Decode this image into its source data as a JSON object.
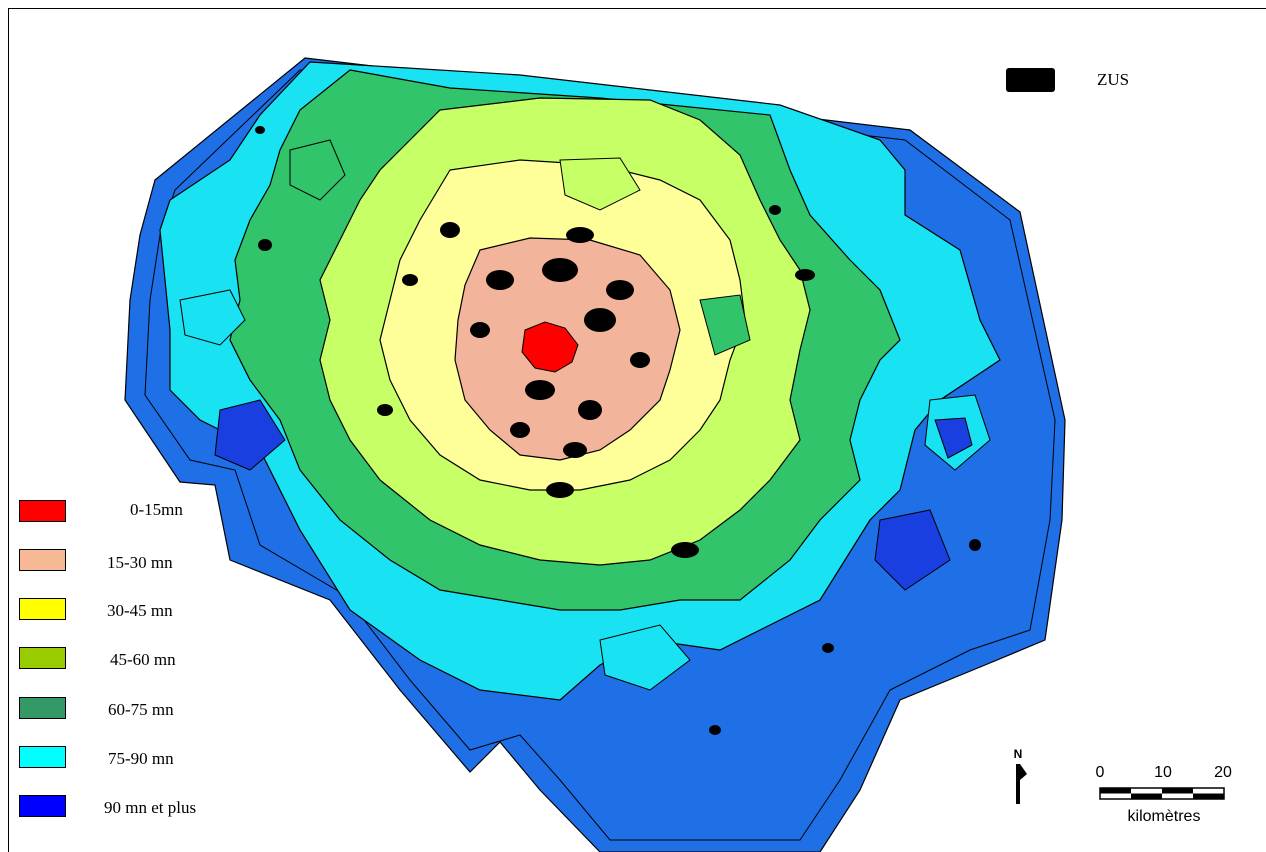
{
  "legend": {
    "items": [
      {
        "label": "0-15mn",
        "color": "#ff0000"
      },
      {
        "label": "15-30 mn",
        "color": "#f7b896"
      },
      {
        "label": "30-45 mn",
        "color": "#ffff00"
      },
      {
        "label": "45-60 mn",
        "color": "#99cc00"
      },
      {
        "label": "60-75 mn",
        "color": "#339966"
      },
      {
        "label": "75-90 mn",
        "color": "#00ffff"
      },
      {
        "label": "90 mn et plus",
        "color": "#0000ff"
      }
    ]
  },
  "overlay": {
    "label": "ZUS",
    "color": "#000000"
  },
  "north": {
    "label": "N"
  },
  "scale": {
    "ticks": [
      "0",
      "10",
      "20"
    ],
    "unit": "kilomètres"
  },
  "map_colors": {
    "outer_deep": "#1a3fe0",
    "outer": "#1f6fe6",
    "cyan": "#19e3f2",
    "green": "#32c46a",
    "lightgreen": "#c6ff66",
    "yellow": "#ffff99",
    "salmon": "#f2b49a",
    "red": "#ff0000"
  }
}
